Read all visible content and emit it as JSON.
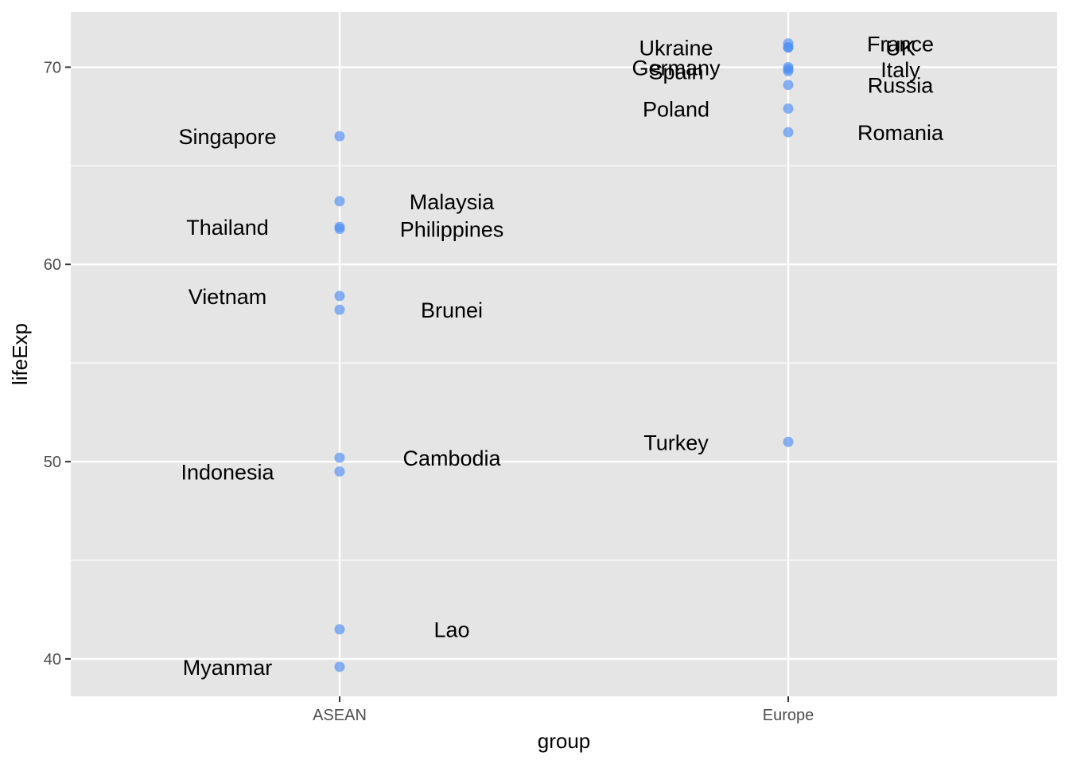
{
  "chart_data": {
    "type": "scatter",
    "title": "",
    "xlabel": "group",
    "ylabel": "lifeExp",
    "categories": [
      "ASEAN",
      "Europe"
    ],
    "ylim": [
      38.1,
      72.8
    ],
    "yticks": [
      40,
      50,
      60,
      70
    ],
    "grid": true,
    "colors": {
      "panel": "#e5e5e5",
      "grid": "#ffffff",
      "point": "#4d8ef5"
    },
    "points": [
      {
        "group": "ASEAN",
        "country": "Singapore",
        "lifeExp": 66.5,
        "label_side": "left"
      },
      {
        "group": "ASEAN",
        "country": "Malaysia",
        "lifeExp": 63.2,
        "label_side": "right"
      },
      {
        "group": "ASEAN",
        "country": "Thailand",
        "lifeExp": 61.9,
        "label_side": "left"
      },
      {
        "group": "ASEAN",
        "country": "Philippines",
        "lifeExp": 61.8,
        "label_side": "right"
      },
      {
        "group": "ASEAN",
        "country": "Vietnam",
        "lifeExp": 58.4,
        "label_side": "left"
      },
      {
        "group": "ASEAN",
        "country": "Brunei",
        "lifeExp": 57.7,
        "label_side": "right"
      },
      {
        "group": "ASEAN",
        "country": "Cambodia",
        "lifeExp": 50.2,
        "label_side": "right"
      },
      {
        "group": "ASEAN",
        "country": "Indonesia",
        "lifeExp": 49.5,
        "label_side": "left"
      },
      {
        "group": "ASEAN",
        "country": "Lao",
        "lifeExp": 41.5,
        "label_side": "right"
      },
      {
        "group": "ASEAN",
        "country": "Myanmar",
        "lifeExp": 39.6,
        "label_side": "left"
      },
      {
        "group": "Europe",
        "country": "France",
        "lifeExp": 71.2,
        "label_side": "right"
      },
      {
        "group": "Europe",
        "country": "UK",
        "lifeExp": 71.0,
        "label_side": "right"
      },
      {
        "group": "Europe",
        "country": "Ukraine",
        "lifeExp": 71.0,
        "label_side": "left"
      },
      {
        "group": "Europe",
        "country": "Germany",
        "lifeExp": 70.0,
        "label_side": "left"
      },
      {
        "group": "Europe",
        "country": "Italy",
        "lifeExp": 69.9,
        "label_side": "right"
      },
      {
        "group": "Europe",
        "country": "Spain",
        "lifeExp": 69.8,
        "label_side": "left"
      },
      {
        "group": "Europe",
        "country": "Russia",
        "lifeExp": 69.1,
        "label_side": "right"
      },
      {
        "group": "Europe",
        "country": "Poland",
        "lifeExp": 67.9,
        "label_side": "left"
      },
      {
        "group": "Europe",
        "country": "Romania",
        "lifeExp": 66.7,
        "label_side": "right"
      },
      {
        "group": "Europe",
        "country": "Turkey",
        "lifeExp": 51.0,
        "label_side": "left"
      }
    ]
  }
}
